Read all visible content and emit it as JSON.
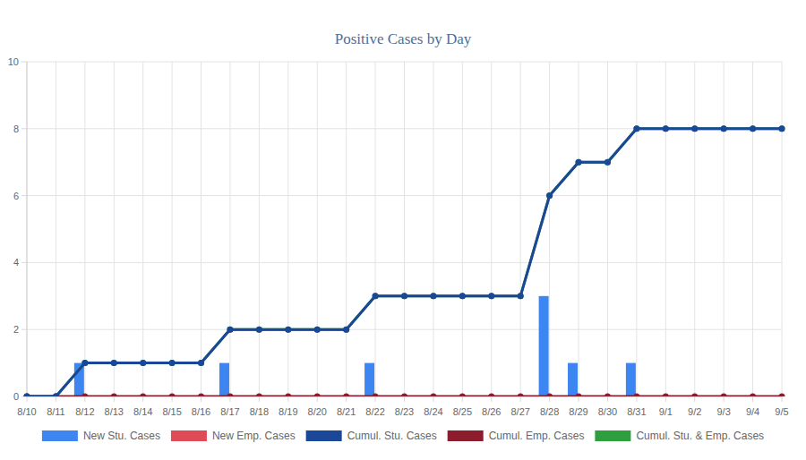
{
  "chart_data": {
    "type": "bar",
    "title": "Positive Cases by Day",
    "categories": [
      "8/10",
      "8/11",
      "8/12",
      "8/13",
      "8/14",
      "8/15",
      "8/16",
      "8/17",
      "8/18",
      "8/19",
      "8/20",
      "8/21",
      "8/22",
      "8/23",
      "8/24",
      "8/25",
      "8/26",
      "8/27",
      "8/28",
      "8/29",
      "8/30",
      "8/31",
      "9/1",
      "9/2",
      "9/3",
      "9/4",
      "9/5"
    ],
    "series": [
      {
        "name": "New Stu. Cases",
        "type": "bar",
        "color": "#3d85f0",
        "values": [
          0,
          0,
          1,
          0,
          0,
          0,
          0,
          1,
          0,
          0,
          0,
          0,
          1,
          0,
          0,
          0,
          0,
          0,
          3,
          1,
          0,
          1,
          0,
          0,
          0,
          0,
          0
        ]
      },
      {
        "name": "New Emp. Cases",
        "type": "bar",
        "color": "#de4b57",
        "values": [
          0,
          0,
          0,
          0,
          0,
          0,
          0,
          0,
          0,
          0,
          0,
          0,
          0,
          0,
          0,
          0,
          0,
          0,
          0,
          0,
          0,
          0,
          0,
          0,
          0,
          0,
          0
        ]
      },
      {
        "name": "Cumul. Stu. Cases",
        "type": "line",
        "color": "#1a4797",
        "marker": "circle",
        "values": [
          0,
          0,
          1,
          1,
          1,
          1,
          1,
          2,
          2,
          2,
          2,
          2,
          3,
          3,
          3,
          3,
          3,
          3,
          6,
          7,
          7,
          8,
          8,
          8,
          8,
          8,
          8
        ]
      },
      {
        "name": "Cumul. Emp. Cases",
        "type": "line",
        "color": "#8b1d2c",
        "marker": "circle",
        "values": [
          0,
          0,
          0,
          0,
          0,
          0,
          0,
          0,
          0,
          0,
          0,
          0,
          0,
          0,
          0,
          0,
          0,
          0,
          0,
          0,
          0,
          0,
          0,
          0,
          0,
          0,
          0
        ]
      },
      {
        "name": "Cumul. Stu. & Emp. Cases",
        "type": "line",
        "color": "#2e9e3e",
        "marker": "circle",
        "values": [
          0,
          0,
          1,
          1,
          1,
          1,
          1,
          2,
          2,
          2,
          2,
          2,
          3,
          3,
          3,
          3,
          3,
          3,
          6,
          7,
          7,
          8,
          8,
          8,
          8,
          8,
          8
        ]
      }
    ],
    "ylim": [
      0,
      10
    ],
    "yticks": [
      0,
      2,
      4,
      6,
      8,
      10
    ],
    "grid": true,
    "legend": "bottom"
  }
}
